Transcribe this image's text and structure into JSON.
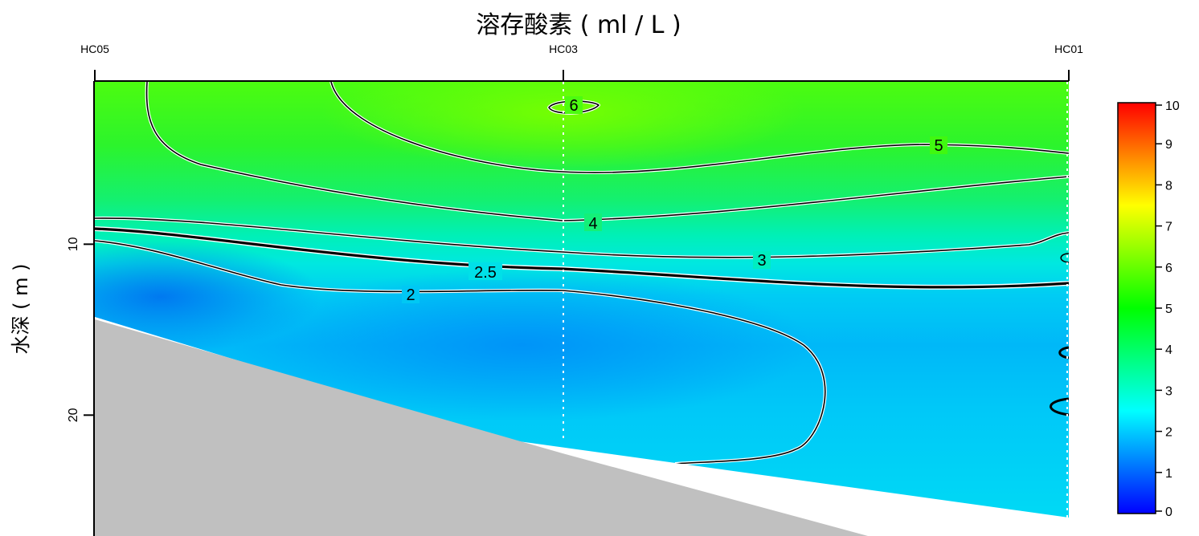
{
  "chart_data": {
    "type": "heatmap",
    "title": "溶存酸素 ( ml / L )",
    "ylabel": "水深 ( m )",
    "stations": [
      "HC05",
      "HC03",
      "HC01"
    ],
    "y_ticks": [
      10,
      20
    ],
    "colorbar": {
      "min": 0,
      "max": 10,
      "ticks": [
        "0",
        "1",
        "2",
        "3",
        "4",
        "5",
        "6",
        "7",
        "8",
        "9",
        "10"
      ],
      "colors": [
        "#0000ff",
        "#0080ff",
        "#00ffff",
        "#00ff80",
        "#00ff00",
        "#80ff00",
        "#ffff00",
        "#ff8000",
        "#ff0000"
      ]
    },
    "contours": [
      {
        "level": 6,
        "label": "6",
        "emphasis": false
      },
      {
        "level": 5,
        "label": "5",
        "emphasis": false
      },
      {
        "level": 4,
        "label": "4",
        "emphasis": false
      },
      {
        "level": 3,
        "label": "3",
        "emphasis": false
      },
      {
        "level": 2.5,
        "label": "2.5",
        "emphasis": true
      },
      {
        "level": 2,
        "label": "2",
        "emphasis": false
      }
    ],
    "seabed_color": "#c0c0c0"
  }
}
